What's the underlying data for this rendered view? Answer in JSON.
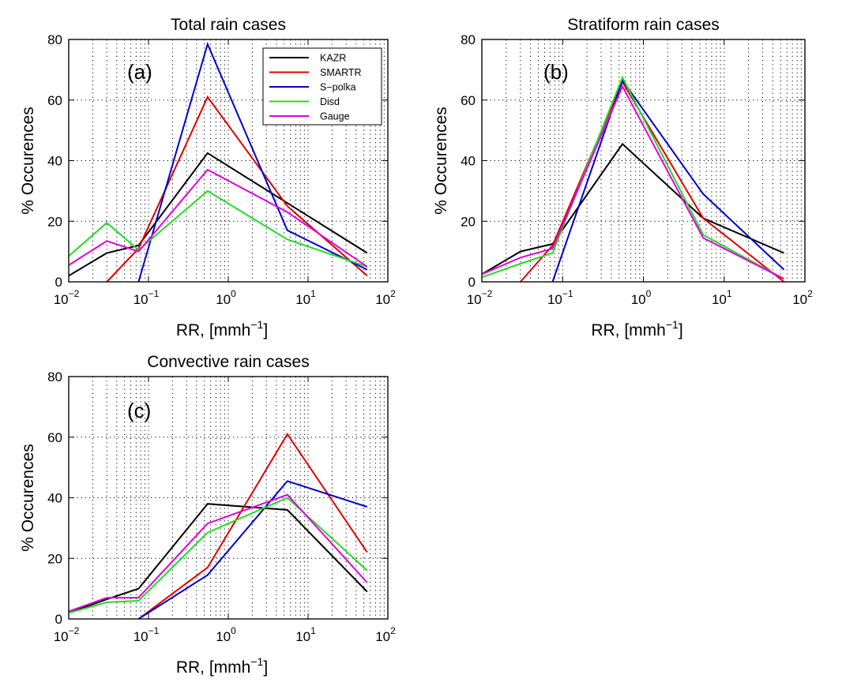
{
  "figure": {
    "series_names": [
      "KAZR",
      "SMARTR",
      "S−polka",
      "Disd",
      "Gauge"
    ],
    "series_colors": [
      "#000000",
      "#e00000",
      "#0000cc",
      "#22dd22",
      "#e000e0"
    ]
  },
  "chart_data": [
    {
      "type": "line",
      "title": "Total rain cases",
      "panel_label": "(a)",
      "ylabel": "% Occurences",
      "xlabel": "RR, [mmh",
      "xlabel_exp": "−1",
      "xlabel_close": "]",
      "xscale": "log",
      "xlim": [
        0.01,
        100
      ],
      "ylim": [
        0,
        80
      ],
      "grid": true,
      "legend": "top-right",
      "x_tick_labels": [
        "10",
        "10",
        "10",
        "10",
        "10"
      ],
      "x_tick_exponents": [
        "−2",
        "−1",
        "0",
        "1",
        "2"
      ],
      "y_ticks": [
        "0",
        "20",
        "40",
        "60",
        "80"
      ],
      "series": [
        {
          "name": "KAZR",
          "x": [
            0.01,
            0.03,
            0.075,
            0.55,
            5.5,
            55
          ],
          "y": [
            2,
            9.5,
            12,
            42.5,
            26,
            9.5
          ]
        },
        {
          "name": "SMARTR",
          "x": [
            0.03,
            0.075,
            0.55,
            5.5,
            55
          ],
          "y": [
            0,
            11,
            61,
            25,
            2
          ]
        },
        {
          "name": "S−polka",
          "x": [
            0.075,
            0.55,
            5.5,
            55
          ],
          "y": [
            0,
            78.5,
            17,
            4
          ]
        },
        {
          "name": "Disd",
          "x": [
            0.01,
            0.03,
            0.075,
            0.55,
            5.5,
            55
          ],
          "y": [
            8.5,
            19.5,
            10.5,
            30,
            14,
            5
          ]
        },
        {
          "name": "Gauge",
          "x": [
            0.01,
            0.03,
            0.075,
            0.55,
            5.5,
            55
          ],
          "y": [
            5.5,
            13.5,
            10,
            37,
            23,
            5
          ]
        }
      ]
    },
    {
      "type": "line",
      "title": "Stratiform rain cases",
      "panel_label": "(b)",
      "ylabel": "% Occurences",
      "xlabel": "RR, [mmh",
      "xlabel_exp": "−1",
      "xlabel_close": "]",
      "xscale": "log",
      "xlim": [
        0.01,
        100
      ],
      "ylim": [
        0,
        80
      ],
      "grid": true,
      "x_tick_labels": [
        "10",
        "10",
        "10",
        "10",
        "10"
      ],
      "x_tick_exponents": [
        "−2",
        "−1",
        "0",
        "1",
        "2"
      ],
      "y_ticks": [
        "0",
        "20",
        "40",
        "60",
        "80"
      ],
      "series": [
        {
          "name": "KAZR",
          "x": [
            0.01,
            0.03,
            0.075,
            0.55,
            5.5,
            55
          ],
          "y": [
            2.5,
            10,
            12.5,
            45.5,
            21,
            9.5
          ]
        },
        {
          "name": "SMARTR",
          "x": [
            0.03,
            0.075,
            0.55,
            5.5,
            55
          ],
          "y": [
            0,
            12,
            66,
            21,
            0
          ]
        },
        {
          "name": "S−polka",
          "x": [
            0.075,
            0.55,
            5.5,
            55
          ],
          "y": [
            0,
            66.5,
            29,
            4
          ]
        },
        {
          "name": "Disd",
          "x": [
            0.01,
            0.03,
            0.075,
            0.55,
            5.5,
            55
          ],
          "y": [
            1.5,
            6,
            9.5,
            67.5,
            15.5,
            1
          ]
        },
        {
          "name": "Gauge",
          "x": [
            0.01,
            0.03,
            0.075,
            0.55,
            5.5,
            55
          ],
          "y": [
            2.5,
            8,
            11,
            64.5,
            14.5,
            1
          ]
        }
      ]
    },
    {
      "type": "line",
      "title": "Convective rain cases",
      "panel_label": "(c)",
      "ylabel": "% Occurences",
      "xlabel": "RR, [mmh",
      "xlabel_exp": "−1",
      "xlabel_close": "]",
      "xscale": "log",
      "xlim": [
        0.01,
        100
      ],
      "ylim": [
        0,
        80
      ],
      "grid": true,
      "x_tick_labels": [
        "10",
        "10",
        "10",
        "10",
        "10"
      ],
      "x_tick_exponents": [
        "−2",
        "−1",
        "0",
        "1",
        "2"
      ],
      "y_ticks": [
        "0",
        "20",
        "40",
        "60",
        "80"
      ],
      "series": [
        {
          "name": "KAZR",
          "x": [
            0.01,
            0.03,
            0.075,
            0.55,
            5.5,
            55
          ],
          "y": [
            2,
            6.5,
            10,
            38,
            36,
            9
          ]
        },
        {
          "name": "SMARTR",
          "x": [
            0.075,
            0.55,
            5.5,
            55
          ],
          "y": [
            0,
            17,
            61,
            22
          ]
        },
        {
          "name": "S−polka",
          "x": [
            0.075,
            0.55,
            5.5,
            55
          ],
          "y": [
            0,
            14.5,
            45.5,
            37
          ]
        },
        {
          "name": "Disd",
          "x": [
            0.01,
            0.03,
            0.075,
            0.55,
            5.5,
            55
          ],
          "y": [
            2,
            5.5,
            6,
            28.5,
            40,
            16
          ]
        },
        {
          "name": "Gauge",
          "x": [
            0.01,
            0.03,
            0.075,
            0.55,
            5.5,
            55
          ],
          "y": [
            2.5,
            7,
            7,
            31.5,
            41,
            12
          ]
        }
      ]
    }
  ]
}
